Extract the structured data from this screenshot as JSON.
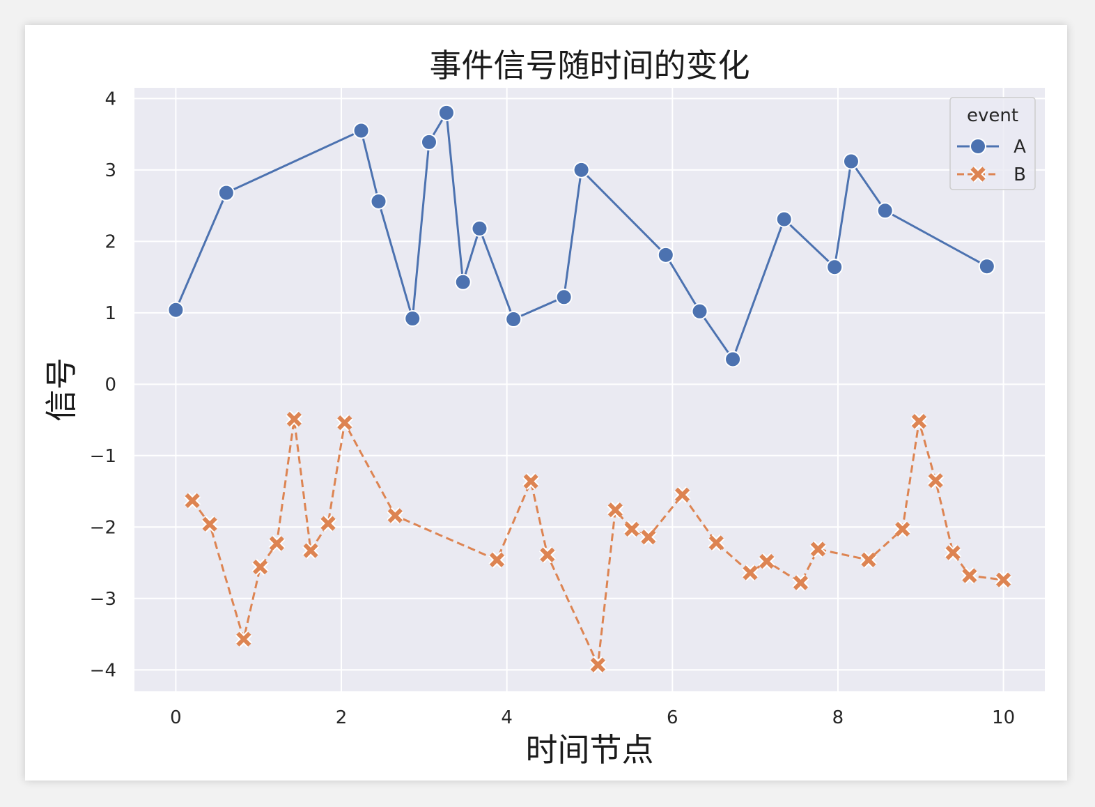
{
  "chart_data": {
    "type": "line",
    "title": "事件信号随时间的变化",
    "xlabel": "时间节点",
    "ylabel": "信号",
    "xlim": [
      -0.5,
      10.5
    ],
    "ylim": [
      -4.3,
      4.15
    ],
    "xticks": [
      0,
      2,
      4,
      6,
      8,
      10
    ],
    "yticks": [
      4,
      3,
      2,
      1,
      0,
      -1,
      -2,
      -3,
      -4
    ],
    "ytick_labels": [
      "4",
      "3",
      "2",
      "1",
      "0",
      "−1",
      "−2",
      "−3",
      "−4"
    ],
    "grid": true,
    "legend": {
      "title": "event",
      "placement": "top-right"
    },
    "series": [
      {
        "name": "A",
        "color": "#4c72b0",
        "marker": "circle",
        "linestyle": "solid",
        "x": [
          0.0,
          0.61,
          2.24,
          2.45,
          2.86,
          3.06,
          3.27,
          3.47,
          3.67,
          4.08,
          4.69,
          4.9,
          5.92,
          6.33,
          6.73,
          7.35,
          7.96,
          8.16,
          8.57,
          9.8
        ],
        "y": [
          1.04,
          2.68,
          3.55,
          2.56,
          0.92,
          3.39,
          3.8,
          1.43,
          2.18,
          0.91,
          1.22,
          3.0,
          1.81,
          1.02,
          0.35,
          2.31,
          1.64,
          3.12,
          2.43,
          1.65
        ]
      },
      {
        "name": "B",
        "color": "#dd8452",
        "marker": "x",
        "linestyle": "dashed",
        "x": [
          0.2,
          0.41,
          0.82,
          1.02,
          1.22,
          1.43,
          1.63,
          1.84,
          2.04,
          2.65,
          3.88,
          4.29,
          4.49,
          5.1,
          5.31,
          5.51,
          5.71,
          6.12,
          6.53,
          6.94,
          7.14,
          7.55,
          7.76,
          8.37,
          8.78,
          8.98,
          9.18,
          9.39,
          9.59,
          10.0
        ],
        "y": [
          -1.63,
          -1.96,
          -3.57,
          -2.56,
          -2.23,
          -0.49,
          -2.33,
          -1.95,
          -0.54,
          -1.84,
          -2.46,
          -1.36,
          -2.39,
          -3.93,
          -1.76,
          -2.03,
          -2.14,
          -1.55,
          -2.22,
          -2.64,
          -2.48,
          -2.78,
          -2.31,
          -2.46,
          -2.03,
          -0.52,
          -1.35,
          -2.36,
          -2.68,
          -2.74
        ]
      }
    ]
  }
}
